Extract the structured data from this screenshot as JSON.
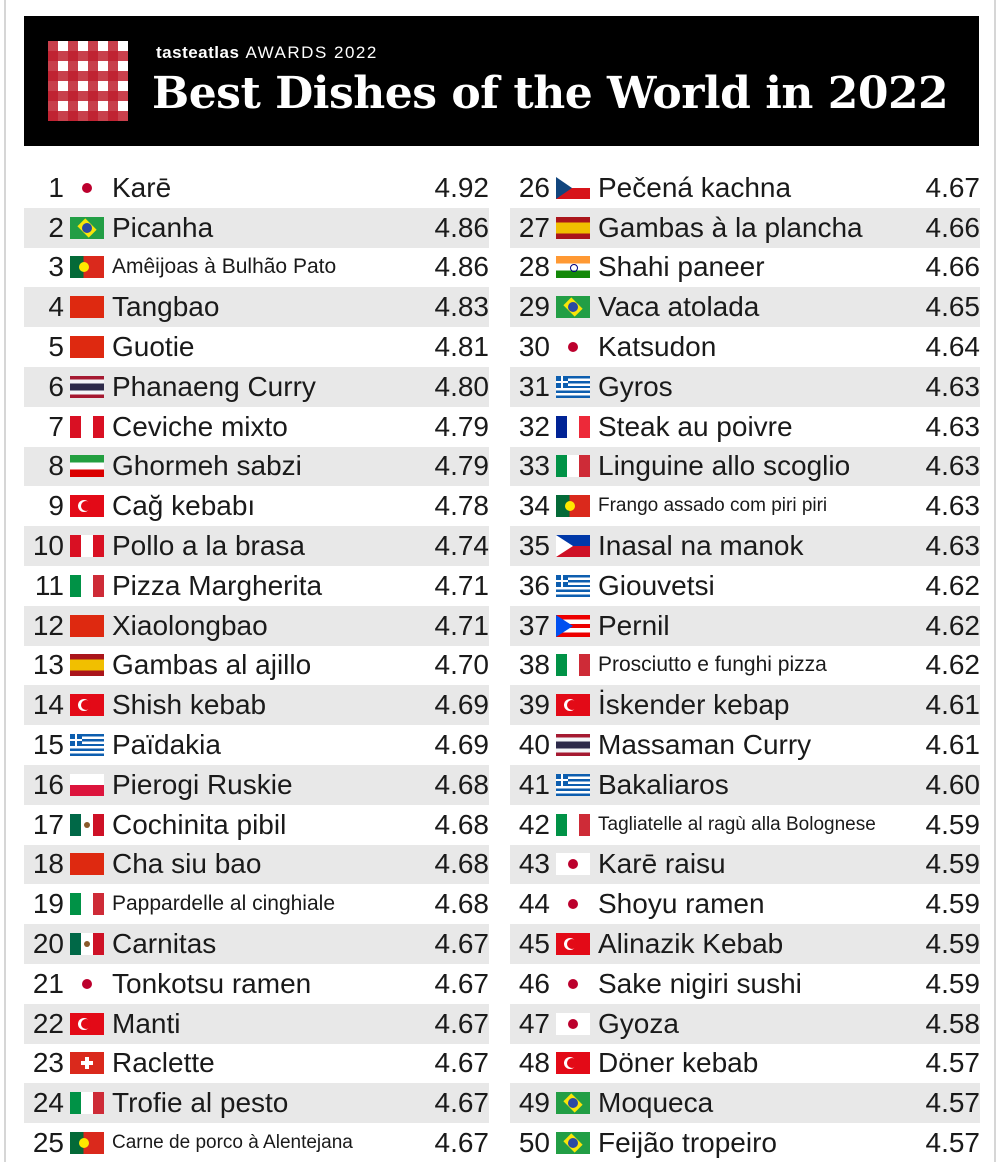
{
  "header": {
    "brand_name": "tasteatlas",
    "awards_label": "AWARDS 2022",
    "title": "Best Dishes of the World in 2022"
  },
  "columns": [
    [
      {
        "rank": "1",
        "flag": "japan-flag-icon",
        "name": "Karē",
        "score": "4.92"
      },
      {
        "rank": "2",
        "flag": "brazil-flag-icon",
        "name": "Picanha",
        "score": "4.86"
      },
      {
        "rank": "3",
        "flag": "portugal-flag-icon",
        "name": "Amêijoas à Bulhão Pato",
        "score": "4.86",
        "size": "small"
      },
      {
        "rank": "4",
        "flag": "china-flag-icon",
        "name": "Tangbao",
        "score": "4.83"
      },
      {
        "rank": "5",
        "flag": "china-flag-icon",
        "name": "Guotie",
        "score": "4.81"
      },
      {
        "rank": "6",
        "flag": "thailand-flag-icon",
        "name": "Phanaeng Curry",
        "score": "4.80"
      },
      {
        "rank": "7",
        "flag": "peru-flag-icon",
        "name": "Ceviche mixto",
        "score": "4.79"
      },
      {
        "rank": "8",
        "flag": "iran-flag-icon",
        "name": "Ghormeh sabzi",
        "score": "4.79"
      },
      {
        "rank": "9",
        "flag": "turkey-flag-icon",
        "name": "Cağ kebabı",
        "score": "4.78"
      },
      {
        "rank": "10",
        "flag": "peru-flag-icon",
        "name": "Pollo a la brasa",
        "score": "4.74"
      },
      {
        "rank": "11",
        "flag": "italy-flag-icon",
        "name": "Pizza Margherita",
        "score": "4.71"
      },
      {
        "rank": "12",
        "flag": "china-flag-icon",
        "name": "Xiaolongbao",
        "score": "4.71"
      },
      {
        "rank": "13",
        "flag": "spain-flag-icon",
        "name": "Gambas al ajillo",
        "score": "4.70"
      },
      {
        "rank": "14",
        "flag": "turkey-flag-icon",
        "name": "Shish kebab",
        "score": "4.69"
      },
      {
        "rank": "15",
        "flag": "greece-flag-icon",
        "name": "Païdakia",
        "score": "4.69"
      },
      {
        "rank": "16",
        "flag": "poland-flag-icon",
        "name": "Pierogi Ruskie",
        "score": "4.68"
      },
      {
        "rank": "17",
        "flag": "mexico-flag-icon",
        "name": "Cochinita pibil",
        "score": "4.68"
      },
      {
        "rank": "18",
        "flag": "china-flag-icon",
        "name": "Cha siu bao",
        "score": "4.68"
      },
      {
        "rank": "19",
        "flag": "italy-flag-icon",
        "name": "Pappardelle al cinghiale",
        "score": "4.68",
        "size": "small"
      },
      {
        "rank": "20",
        "flag": "mexico-flag-icon",
        "name": "Carnitas",
        "score": "4.67"
      },
      {
        "rank": "21",
        "flag": "japan-flag-icon",
        "name": "Tonkotsu ramen",
        "score": "4.67"
      },
      {
        "rank": "22",
        "flag": "turkey-flag-icon",
        "name": "Manti",
        "score": "4.67"
      },
      {
        "rank": "23",
        "flag": "switzerland-flag-icon",
        "name": "Raclette",
        "score": "4.67"
      },
      {
        "rank": "24",
        "flag": "italy-flag-icon",
        "name": "Trofie al pesto",
        "score": "4.67"
      },
      {
        "rank": "25",
        "flag": "portugal-flag-icon",
        "name": "Carne de porco à Alentejana",
        "score": "4.67",
        "size": "xsmall"
      }
    ],
    [
      {
        "rank": "26",
        "flag": "czechia-flag-icon",
        "name": "Pečená kachna",
        "score": "4.67"
      },
      {
        "rank": "27",
        "flag": "spain-flag-icon",
        "name": "Gambas à la plancha",
        "score": "4.66"
      },
      {
        "rank": "28",
        "flag": "india-flag-icon",
        "name": "Shahi paneer",
        "score": "4.66"
      },
      {
        "rank": "29",
        "flag": "brazil-flag-icon",
        "name": "Vaca atolada",
        "score": "4.65"
      },
      {
        "rank": "30",
        "flag": "japan-flag-icon",
        "name": "Katsudon",
        "score": "4.64"
      },
      {
        "rank": "31",
        "flag": "greece-flag-icon",
        "name": "Gyros",
        "score": "4.63"
      },
      {
        "rank": "32",
        "flag": "france-flag-icon",
        "name": "Steak au poivre",
        "score": "4.63"
      },
      {
        "rank": "33",
        "flag": "italy-flag-icon",
        "name": "Linguine allo scoglio",
        "score": "4.63"
      },
      {
        "rank": "34",
        "flag": "portugal-flag-icon",
        "name": "Frango assado com piri piri",
        "score": "4.63",
        "size": "xsmall"
      },
      {
        "rank": "35",
        "flag": "philippines-flag-icon",
        "name": "Inasal na manok",
        "score": "4.63"
      },
      {
        "rank": "36",
        "flag": "greece-flag-icon",
        "name": "Giouvetsi",
        "score": "4.62"
      },
      {
        "rank": "37",
        "flag": "puerto-rico-flag-icon",
        "name": "Pernil",
        "score": "4.62"
      },
      {
        "rank": "38",
        "flag": "italy-flag-icon",
        "name": "Prosciutto e funghi pizza",
        "score": "4.62",
        "size": "small"
      },
      {
        "rank": "39",
        "flag": "turkey-flag-icon",
        "name": "İskender kebap",
        "score": "4.61"
      },
      {
        "rank": "40",
        "flag": "thailand-flag-icon",
        "name": "Massaman Curry",
        "score": "4.61"
      },
      {
        "rank": "41",
        "flag": "greece-flag-icon",
        "name": "Bakaliaros",
        "score": "4.60"
      },
      {
        "rank": "42",
        "flag": "italy-flag-icon",
        "name": "Tagliatelle al ragù alla Bolognese",
        "score": "4.59",
        "size": "xsmall"
      },
      {
        "rank": "43",
        "flag": "japan-flag-icon",
        "name": "Karē raisu",
        "score": "4.59"
      },
      {
        "rank": "44",
        "flag": "japan-flag-icon",
        "name": "Shoyu ramen",
        "score": "4.59"
      },
      {
        "rank": "45",
        "flag": "turkey-flag-icon",
        "name": "Alinazik Kebab",
        "score": "4.59"
      },
      {
        "rank": "46",
        "flag": "japan-flag-icon",
        "name": "Sake nigiri sushi",
        "score": "4.59"
      },
      {
        "rank": "47",
        "flag": "japan-flag-icon",
        "name": "Gyoza",
        "score": "4.58"
      },
      {
        "rank": "48",
        "flag": "turkey-flag-icon",
        "name": "Döner kebab",
        "score": "4.57"
      },
      {
        "rank": "49",
        "flag": "brazil-flag-icon",
        "name": "Moqueca",
        "score": "4.57"
      },
      {
        "rank": "50",
        "flag": "brazil-flag-icon",
        "name": "Feijão tropeiro",
        "score": "4.57"
      }
    ]
  ]
}
